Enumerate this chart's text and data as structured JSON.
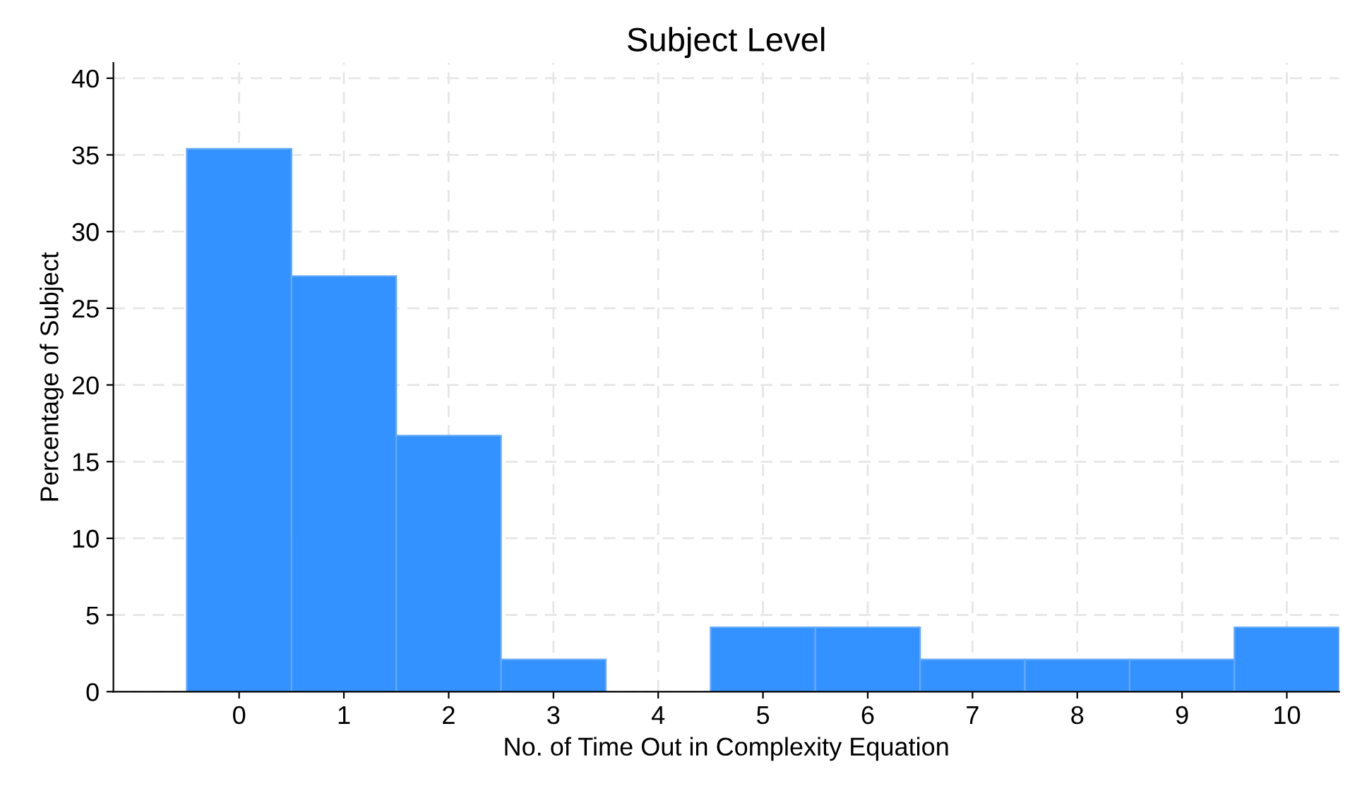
{
  "chart_data": {
    "type": "histogram",
    "title": "Subject Level",
    "xlabel": "No. of Time Out in Complexity Equation",
    "ylabel": "Percentage of Subject",
    "bins": [
      -0.5,
      0.5,
      1.5,
      2.5,
      3.5,
      4.5,
      5.5,
      6.5,
      7.5,
      8.5,
      9.5,
      10.5
    ],
    "values": [
      35.4,
      27.1,
      16.7,
      2.1,
      0,
      4.2,
      4.2,
      2.1,
      2.1,
      2.1,
      4.2
    ],
    "color": "#3392ff",
    "xlim": [
      -1.2,
      10.5
    ],
    "xticks": [
      0,
      1,
      2,
      3,
      4,
      5,
      6,
      7,
      8,
      9,
      10
    ],
    "ylim": [
      0,
      41
    ],
    "yticks": [
      0,
      5,
      10,
      15,
      20,
      25,
      30,
      35,
      40
    ],
    "grid": true
  }
}
